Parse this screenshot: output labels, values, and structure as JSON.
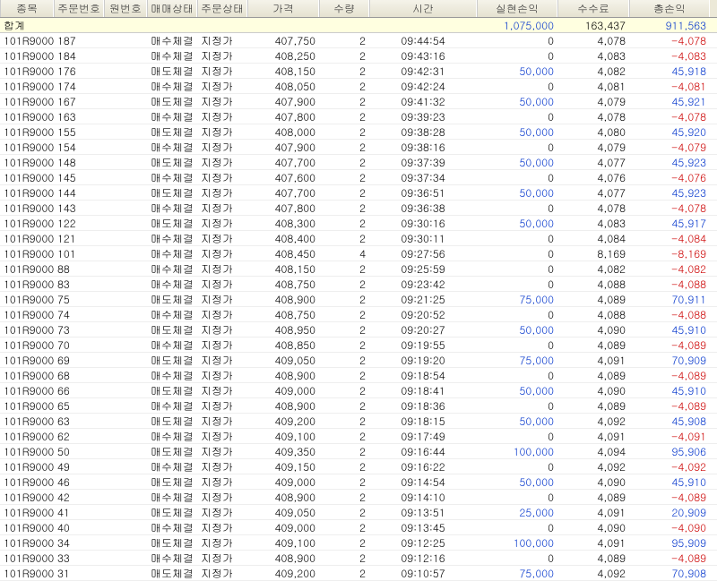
{
  "columns": [
    "종목",
    "주문번호",
    "원번호",
    "매매상태",
    "주문상태",
    "가격",
    "수량",
    "시간",
    "실현손익",
    "수수료",
    "총손익"
  ],
  "summary": {
    "label": "합계",
    "realized": "1,075,000",
    "realized_cls": "blue",
    "fee": "163,437",
    "total": "911,563",
    "total_cls": "blue"
  },
  "rows": [
    {
      "sym": "101R9000",
      "ord": "187",
      "bs": "매수체결",
      "ty": "지정가",
      "px": "407,750",
      "qty": "2",
      "time": "09:44:54",
      "pl": "0",
      "pl_cls": "black",
      "fee": "4,078",
      "net": "-4,078",
      "net_cls": "red"
    },
    {
      "sym": "101R9000",
      "ord": "184",
      "bs": "매수체결",
      "ty": "지정가",
      "px": "408,250",
      "qty": "2",
      "time": "09:43:16",
      "pl": "0",
      "pl_cls": "black",
      "fee": "4,083",
      "net": "-4,083",
      "net_cls": "red"
    },
    {
      "sym": "101R9000",
      "ord": "176",
      "bs": "매도체결",
      "ty": "지정가",
      "px": "408,150",
      "qty": "2",
      "time": "09:42:31",
      "pl": "50,000",
      "pl_cls": "blue",
      "fee": "4,082",
      "net": "45,918",
      "net_cls": "blue"
    },
    {
      "sym": "101R9000",
      "ord": "174",
      "bs": "매수체결",
      "ty": "지정가",
      "px": "408,050",
      "qty": "2",
      "time": "09:42:24",
      "pl": "0",
      "pl_cls": "black",
      "fee": "4,081",
      "net": "-4,081",
      "net_cls": "red"
    },
    {
      "sym": "101R9000",
      "ord": "167",
      "bs": "매도체결",
      "ty": "지정가",
      "px": "407,900",
      "qty": "2",
      "time": "09:41:32",
      "pl": "50,000",
      "pl_cls": "blue",
      "fee": "4,079",
      "net": "45,921",
      "net_cls": "blue"
    },
    {
      "sym": "101R9000",
      "ord": "163",
      "bs": "매수체결",
      "ty": "지정가",
      "px": "407,800",
      "qty": "2",
      "time": "09:39:23",
      "pl": "0",
      "pl_cls": "black",
      "fee": "4,078",
      "net": "-4,078",
      "net_cls": "red"
    },
    {
      "sym": "101R9000",
      "ord": "155",
      "bs": "매도체결",
      "ty": "지정가",
      "px": "408,000",
      "qty": "2",
      "time": "09:38:28",
      "pl": "50,000",
      "pl_cls": "blue",
      "fee": "4,080",
      "net": "45,920",
      "net_cls": "blue"
    },
    {
      "sym": "101R9000",
      "ord": "154",
      "bs": "매수체결",
      "ty": "지정가",
      "px": "407,900",
      "qty": "2",
      "time": "09:38:16",
      "pl": "0",
      "pl_cls": "black",
      "fee": "4,079",
      "net": "-4,079",
      "net_cls": "red"
    },
    {
      "sym": "101R9000",
      "ord": "148",
      "bs": "매도체결",
      "ty": "지정가",
      "px": "407,700",
      "qty": "2",
      "time": "09:37:39",
      "pl": "50,000",
      "pl_cls": "blue",
      "fee": "4,077",
      "net": "45,923",
      "net_cls": "blue"
    },
    {
      "sym": "101R9000",
      "ord": "145",
      "bs": "매수체결",
      "ty": "지정가",
      "px": "407,600",
      "qty": "2",
      "time": "09:37:34",
      "pl": "0",
      "pl_cls": "black",
      "fee": "4,076",
      "net": "-4,076",
      "net_cls": "red"
    },
    {
      "sym": "101R9000",
      "ord": "144",
      "bs": "매도체결",
      "ty": "지정가",
      "px": "407,700",
      "qty": "2",
      "time": "09:36:51",
      "pl": "50,000",
      "pl_cls": "blue",
      "fee": "4,077",
      "net": "45,923",
      "net_cls": "blue"
    },
    {
      "sym": "101R9000",
      "ord": "143",
      "bs": "매수체결",
      "ty": "지정가",
      "px": "407,800",
      "qty": "2",
      "time": "09:36:38",
      "pl": "0",
      "pl_cls": "black",
      "fee": "4,078",
      "net": "-4,078",
      "net_cls": "red"
    },
    {
      "sym": "101R9000",
      "ord": "122",
      "bs": "매도체결",
      "ty": "지정가",
      "px": "408,300",
      "qty": "2",
      "time": "09:30:16",
      "pl": "50,000",
      "pl_cls": "blue",
      "fee": "4,083",
      "net": "45,917",
      "net_cls": "blue"
    },
    {
      "sym": "101R9000",
      "ord": "121",
      "bs": "매수체결",
      "ty": "지정가",
      "px": "408,400",
      "qty": "2",
      "time": "09:30:11",
      "pl": "0",
      "pl_cls": "black",
      "fee": "4,084",
      "net": "-4,084",
      "net_cls": "red"
    },
    {
      "sym": "101R9000",
      "ord": "101",
      "bs": "매수체결",
      "ty": "지정가",
      "px": "408,450",
      "qty": "4",
      "time": "09:27:56",
      "pl": "0",
      "pl_cls": "black",
      "fee": "8,169",
      "net": "-8,169",
      "net_cls": "red"
    },
    {
      "sym": "101R9000",
      "ord": "88",
      "bs": "매수체결",
      "ty": "지정가",
      "px": "408,150",
      "qty": "2",
      "time": "09:25:59",
      "pl": "0",
      "pl_cls": "black",
      "fee": "4,082",
      "net": "-4,082",
      "net_cls": "red"
    },
    {
      "sym": "101R9000",
      "ord": "83",
      "bs": "매수체결",
      "ty": "지정가",
      "px": "408,750",
      "qty": "2",
      "time": "09:23:42",
      "pl": "0",
      "pl_cls": "black",
      "fee": "4,088",
      "net": "-4,088",
      "net_cls": "red"
    },
    {
      "sym": "101R9000",
      "ord": "75",
      "bs": "매도체결",
      "ty": "지정가",
      "px": "408,900",
      "qty": "2",
      "time": "09:21:25",
      "pl": "75,000",
      "pl_cls": "blue",
      "fee": "4,089",
      "net": "70,911",
      "net_cls": "blue"
    },
    {
      "sym": "101R9000",
      "ord": "74",
      "bs": "매수체결",
      "ty": "지정가",
      "px": "408,750",
      "qty": "2",
      "time": "09:20:52",
      "pl": "0",
      "pl_cls": "black",
      "fee": "4,088",
      "net": "-4,088",
      "net_cls": "red"
    },
    {
      "sym": "101R9000",
      "ord": "73",
      "bs": "매도체결",
      "ty": "지정가",
      "px": "408,950",
      "qty": "2",
      "time": "09:20:27",
      "pl": "50,000",
      "pl_cls": "blue",
      "fee": "4,090",
      "net": "45,910",
      "net_cls": "blue"
    },
    {
      "sym": "101R9000",
      "ord": "70",
      "bs": "매수체결",
      "ty": "지정가",
      "px": "408,850",
      "qty": "2",
      "time": "09:19:55",
      "pl": "0",
      "pl_cls": "black",
      "fee": "4,089",
      "net": "-4,089",
      "net_cls": "red"
    },
    {
      "sym": "101R9000",
      "ord": "69",
      "bs": "매도체결",
      "ty": "지정가",
      "px": "409,050",
      "qty": "2",
      "time": "09:19:20",
      "pl": "75,000",
      "pl_cls": "blue",
      "fee": "4,091",
      "net": "70,909",
      "net_cls": "blue"
    },
    {
      "sym": "101R9000",
      "ord": "68",
      "bs": "매수체결",
      "ty": "지정가",
      "px": "408,900",
      "qty": "2",
      "time": "09:18:54",
      "pl": "0",
      "pl_cls": "black",
      "fee": "4,089",
      "net": "-4,089",
      "net_cls": "red"
    },
    {
      "sym": "101R9000",
      "ord": "66",
      "bs": "매도체결",
      "ty": "지정가",
      "px": "409,000",
      "qty": "2",
      "time": "09:18:41",
      "pl": "50,000",
      "pl_cls": "blue",
      "fee": "4,090",
      "net": "45,910",
      "net_cls": "blue"
    },
    {
      "sym": "101R9000",
      "ord": "65",
      "bs": "매수체결",
      "ty": "지정가",
      "px": "408,900",
      "qty": "2",
      "time": "09:18:36",
      "pl": "0",
      "pl_cls": "black",
      "fee": "4,089",
      "net": "-4,089",
      "net_cls": "red"
    },
    {
      "sym": "101R9000",
      "ord": "63",
      "bs": "매도체결",
      "ty": "지정가",
      "px": "409,200",
      "qty": "2",
      "time": "09:18:15",
      "pl": "50,000",
      "pl_cls": "blue",
      "fee": "4,092",
      "net": "45,908",
      "net_cls": "blue"
    },
    {
      "sym": "101R9000",
      "ord": "62",
      "bs": "매수체결",
      "ty": "지정가",
      "px": "409,100",
      "qty": "2",
      "time": "09:17:49",
      "pl": "0",
      "pl_cls": "black",
      "fee": "4,091",
      "net": "-4,091",
      "net_cls": "red"
    },
    {
      "sym": "101R9000",
      "ord": "50",
      "bs": "매도체결",
      "ty": "지정가",
      "px": "409,350",
      "qty": "2",
      "time": "09:16:44",
      "pl": "100,000",
      "pl_cls": "blue",
      "fee": "4,094",
      "net": "95,906",
      "net_cls": "blue"
    },
    {
      "sym": "101R9000",
      "ord": "49",
      "bs": "매수체결",
      "ty": "지정가",
      "px": "409,150",
      "qty": "2",
      "time": "09:16:22",
      "pl": "0",
      "pl_cls": "black",
      "fee": "4,092",
      "net": "-4,092",
      "net_cls": "red"
    },
    {
      "sym": "101R9000",
      "ord": "46",
      "bs": "매도체결",
      "ty": "지정가",
      "px": "409,000",
      "qty": "2",
      "time": "09:14:54",
      "pl": "50,000",
      "pl_cls": "blue",
      "fee": "4,090",
      "net": "45,910",
      "net_cls": "blue"
    },
    {
      "sym": "101R9000",
      "ord": "42",
      "bs": "매수체결",
      "ty": "지정가",
      "px": "408,900",
      "qty": "2",
      "time": "09:14:10",
      "pl": "0",
      "pl_cls": "black",
      "fee": "4,089",
      "net": "-4,089",
      "net_cls": "red"
    },
    {
      "sym": "101R9000",
      "ord": "41",
      "bs": "매도체결",
      "ty": "지정가",
      "px": "409,050",
      "qty": "2",
      "time": "09:13:51",
      "pl": "25,000",
      "pl_cls": "blue",
      "fee": "4,091",
      "net": "20,909",
      "net_cls": "blue"
    },
    {
      "sym": "101R9000",
      "ord": "40",
      "bs": "매수체결",
      "ty": "지정가",
      "px": "409,000",
      "qty": "2",
      "time": "09:13:45",
      "pl": "0",
      "pl_cls": "black",
      "fee": "4,090",
      "net": "-4,090",
      "net_cls": "red"
    },
    {
      "sym": "101R9000",
      "ord": "34",
      "bs": "매도체결",
      "ty": "지정가",
      "px": "409,100",
      "qty": "2",
      "time": "09:12:25",
      "pl": "100,000",
      "pl_cls": "blue",
      "fee": "4,091",
      "net": "95,909",
      "net_cls": "blue"
    },
    {
      "sym": "101R9000",
      "ord": "33",
      "bs": "매수체결",
      "ty": "지정가",
      "px": "408,900",
      "qty": "2",
      "time": "09:12:16",
      "pl": "0",
      "pl_cls": "black",
      "fee": "4,089",
      "net": "-4,089",
      "net_cls": "red"
    },
    {
      "sym": "101R9000",
      "ord": "31",
      "bs": "매도체결",
      "ty": "지정가",
      "px": "409,200",
      "qty": "2",
      "time": "09:10:57",
      "pl": "75,000",
      "pl_cls": "blue",
      "fee": "4,092",
      "net": "70,908",
      "net_cls": "blue"
    }
  ]
}
